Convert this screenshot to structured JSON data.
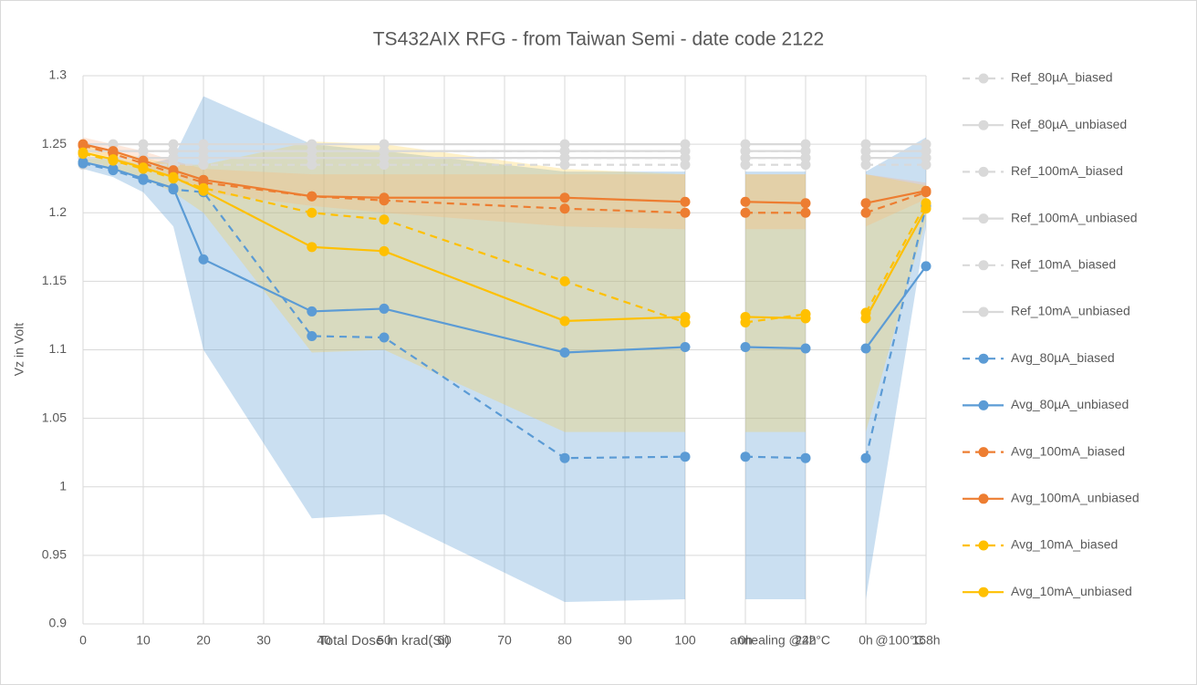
{
  "chart_data": {
    "type": "line",
    "title": "TS432AIX RFG - from Taiwan Semi - date code 2122",
    "x_label": "Total Dose in krad(Si)",
    "y_label": "Vz in Volt",
    "annotations": [
      "annealing @22°C",
      "@100°C"
    ],
    "x": [
      0,
      5,
      10,
      15,
      20,
      38,
      50,
      80,
      100,
      null,
      110,
      120,
      null,
      130,
      140
    ],
    "xlim": [
      0,
      140
    ],
    "xticks": [
      0,
      10,
      20,
      30,
      40,
      50,
      60,
      70,
      80,
      90,
      100,
      {
        "value": 110,
        "label": "0h"
      },
      {
        "value": 120,
        "label": "24h"
      },
      {
        "value": 130,
        "label": "0h"
      },
      {
        "value": 140,
        "label": "168h"
      }
    ],
    "ylim": [
      0.9,
      1.3
    ],
    "yticks": [
      0.9,
      0.95,
      1,
      1.05,
      1.1,
      1.15,
      1.2,
      1.25,
      1.3
    ],
    "grid": true,
    "legend": "right",
    "series": [
      {
        "name": "Ref_80µA_biased",
        "color": "#d9d9d9",
        "dash": true,
        "values": [
          1.245,
          1.245,
          1.245,
          1.245,
          1.245,
          1.245,
          1.245,
          1.245,
          1.245,
          null,
          1.245,
          1.245,
          null,
          1.245,
          1.245
        ]
      },
      {
        "name": "Ref_80µA_unbiased",
        "color": "#d9d9d9",
        "dash": false,
        "values": [
          1.25,
          1.25,
          1.25,
          1.25,
          1.25,
          1.25,
          1.25,
          1.25,
          1.25,
          null,
          1.25,
          1.25,
          null,
          1.25,
          1.25
        ]
      },
      {
        "name": "Ref_100mA_biased",
        "color": "#d9d9d9",
        "dash": true,
        "values": [
          1.24,
          1.24,
          1.24,
          1.24,
          1.24,
          1.24,
          1.24,
          1.24,
          1.24,
          null,
          1.24,
          1.24,
          null,
          1.24,
          1.24
        ]
      },
      {
        "name": "Ref_100mA_unbiased",
        "color": "#d9d9d9",
        "dash": false,
        "values": [
          1.245,
          1.245,
          1.245,
          1.245,
          1.245,
          1.245,
          1.245,
          1.245,
          1.245,
          null,
          1.245,
          1.245,
          null,
          1.245,
          1.245
        ]
      },
      {
        "name": "Ref_10mA_biased",
        "color": "#d9d9d9",
        "dash": true,
        "values": [
          1.235,
          1.235,
          1.235,
          1.235,
          1.235,
          1.235,
          1.235,
          1.235,
          1.235,
          null,
          1.235,
          1.235,
          null,
          1.235,
          1.235
        ]
      },
      {
        "name": "Ref_10mA_unbiased",
        "color": "#d9d9d9",
        "dash": false,
        "values": [
          1.24,
          1.24,
          1.24,
          1.24,
          1.24,
          1.24,
          1.24,
          1.24,
          1.24,
          null,
          1.24,
          1.24,
          null,
          1.24,
          1.24
        ]
      },
      {
        "name": "Avg_80µA_biased",
        "color": "#5b9bd5",
        "dash": true,
        "values": [
          1.236,
          1.231,
          1.224,
          1.217,
          1.215,
          1.11,
          1.109,
          1.021,
          1.022,
          null,
          1.022,
          1.021,
          null,
          1.021,
          1.205
        ]
      },
      {
        "name": "Avg_80µA_unbiased",
        "color": "#5b9bd5",
        "dash": false,
        "values": [
          1.237,
          1.232,
          1.225,
          1.218,
          1.166,
          1.128,
          1.13,
          1.098,
          1.102,
          null,
          1.102,
          1.101,
          null,
          1.101,
          1.161
        ],
        "band_color": "rgba(91,155,213,0.32)",
        "band_low": [
          1.232,
          1.226,
          1.215,
          1.19,
          1.1,
          0.977,
          0.98,
          0.916,
          0.918,
          null,
          0.918,
          0.918,
          null,
          0.918,
          1.19
        ],
        "band_high": [
          1.24,
          1.24,
          1.235,
          1.24,
          1.285,
          1.25,
          1.245,
          1.23,
          1.23,
          null,
          1.23,
          1.23,
          null,
          1.23,
          1.255
        ]
      },
      {
        "name": "Avg_100mA_biased",
        "color": "#ed7d31",
        "dash": true,
        "values": [
          1.249,
          1.243,
          1.236,
          1.229,
          1.222,
          1.212,
          1.209,
          1.203,
          1.2,
          null,
          1.2,
          1.2,
          null,
          1.2,
          1.215
        ]
      },
      {
        "name": "Avg_100mA_unbiased",
        "color": "#ed7d31",
        "dash": false,
        "values": [
          1.25,
          1.245,
          1.238,
          1.231,
          1.224,
          1.212,
          1.211,
          1.211,
          1.208,
          null,
          1.208,
          1.207,
          null,
          1.207,
          1.216
        ],
        "band_color": "rgba(248,180,140,0.3)",
        "band_low": [
          1.245,
          1.24,
          1.232,
          1.225,
          1.215,
          1.205,
          1.2,
          1.19,
          1.188,
          null,
          1.188,
          1.188,
          null,
          1.19,
          1.21
        ],
        "band_high": [
          1.255,
          1.25,
          1.245,
          1.238,
          1.232,
          1.228,
          1.228,
          1.228,
          1.228,
          null,
          1.228,
          1.228,
          null,
          1.228,
          1.222
        ]
      },
      {
        "name": "Avg_10mA_biased",
        "color": "#ffc000",
        "dash": true,
        "values": [
          1.243,
          1.238,
          1.232,
          1.225,
          1.218,
          1.2,
          1.195,
          1.15,
          1.12,
          null,
          1.12,
          1.126,
          null,
          1.127,
          1.207
        ]
      },
      {
        "name": "Avg_10mA_unbiased",
        "color": "#ffc000",
        "dash": false,
        "values": [
          1.244,
          1.239,
          1.233,
          1.226,
          1.216,
          1.175,
          1.172,
          1.121,
          1.124,
          null,
          1.124,
          1.123,
          null,
          1.123,
          1.203
        ],
        "band_color": "rgba(255,205,60,0.28)",
        "band_low": [
          1.238,
          1.232,
          1.225,
          1.215,
          1.2,
          1.098,
          1.1,
          1.04,
          1.04,
          null,
          1.04,
          1.04,
          null,
          1.04,
          1.195
        ],
        "band_high": [
          1.25,
          1.245,
          1.24,
          1.235,
          1.235,
          1.252,
          1.25,
          1.232,
          1.228,
          null,
          1.228,
          1.228,
          null,
          1.228,
          1.22
        ]
      }
    ]
  }
}
